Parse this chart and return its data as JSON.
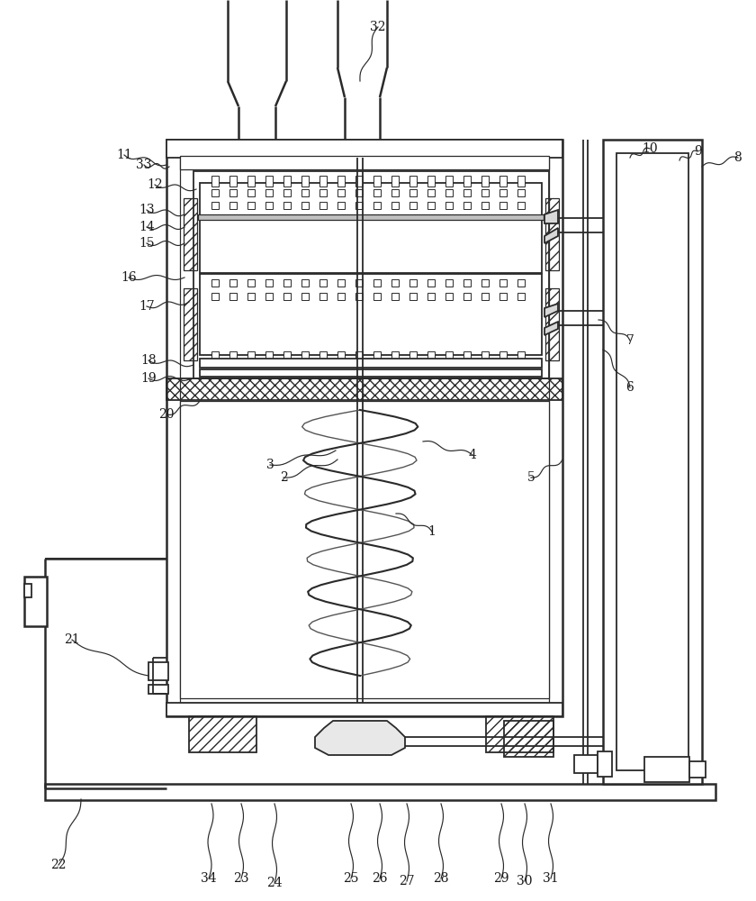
{
  "bg_color": "#ffffff",
  "line_color": "#2a2a2a",
  "figsize": [
    8.4,
    10.0
  ],
  "dpi": 100
}
